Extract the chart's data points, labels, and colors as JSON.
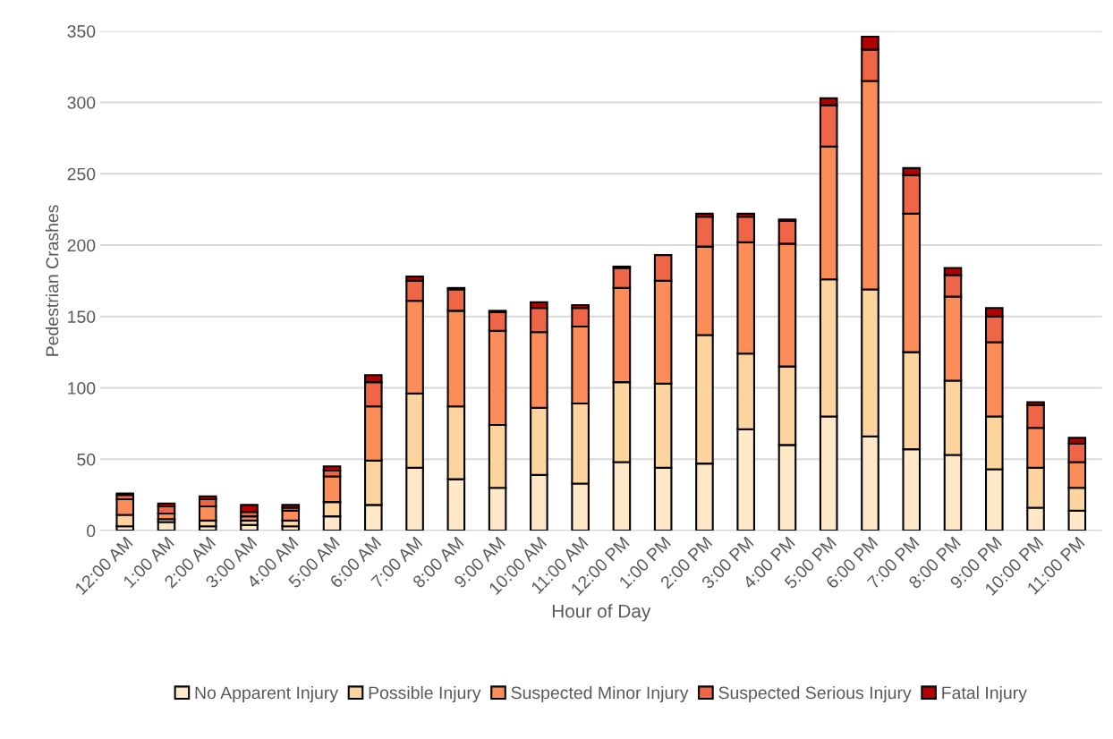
{
  "chart_data": {
    "type": "bar",
    "stacked": true,
    "xlabel": "Hour of Day",
    "ylabel": "Pedestrian Crashes",
    "categories": [
      "12:00 AM",
      "1:00 AM",
      "2:00 AM",
      "3:00 AM",
      "4:00 AM",
      "5:00 AM",
      "6:00 AM",
      "7:00 AM",
      "8:00 AM",
      "9:00 AM",
      "10:00 AM",
      "11:00 AM",
      "12:00 PM",
      "1:00 PM",
      "2:00 PM",
      "3:00 PM",
      "4:00 PM",
      "5:00 PM",
      "6:00 PM",
      "7:00 PM",
      "8:00 PM",
      "9:00 PM",
      "10:00 PM",
      "11:00 PM"
    ],
    "series": [
      {
        "name": "No Apparent Injury",
        "color": "#fee8c8",
        "values": [
          3,
          6,
          3,
          4,
          3,
          10,
          18,
          44,
          36,
          30,
          39,
          33,
          48,
          44,
          47,
          71,
          60,
          80,
          66,
          57,
          53,
          43,
          16,
          14
        ]
      },
      {
        "name": "Possible Injury",
        "color": "#fdd49e",
        "values": [
          8,
          2,
          4,
          3,
          4,
          10,
          31,
          52,
          51,
          44,
          47,
          56,
          56,
          59,
          90,
          53,
          55,
          96,
          103,
          68,
          52,
          37,
          28,
          16
        ]
      },
      {
        "name": "Suspected Minor Injury",
        "color": "#fc8d59",
        "values": [
          11,
          4,
          10,
          3,
          7,
          18,
          38,
          65,
          67,
          66,
          53,
          54,
          66,
          72,
          62,
          78,
          86,
          93,
          146,
          97,
          59,
          52,
          28,
          18
        ]
      },
      {
        "name": "Suspected Serious Injury",
        "color": "#ef6548",
        "values": [
          3,
          5,
          5,
          3,
          2,
          4,
          17,
          14,
          15,
          13,
          17,
          13,
          14,
          18,
          21,
          18,
          16,
          29,
          22,
          27,
          15,
          18,
          16,
          13
        ]
      },
      {
        "name": "Fatal Injury",
        "color": "#b30000",
        "values": [
          1,
          2,
          2,
          5,
          2,
          3,
          5,
          3,
          1,
          1,
          4,
          2,
          1,
          null,
          2,
          2,
          1,
          5,
          9,
          5,
          5,
          6,
          2,
          4
        ]
      }
    ],
    "ylim": [
      0,
      350
    ],
    "yticks": [
      0,
      50,
      100,
      150,
      200,
      250,
      300,
      350
    ],
    "grid": "y",
    "legend": "bottom"
  }
}
